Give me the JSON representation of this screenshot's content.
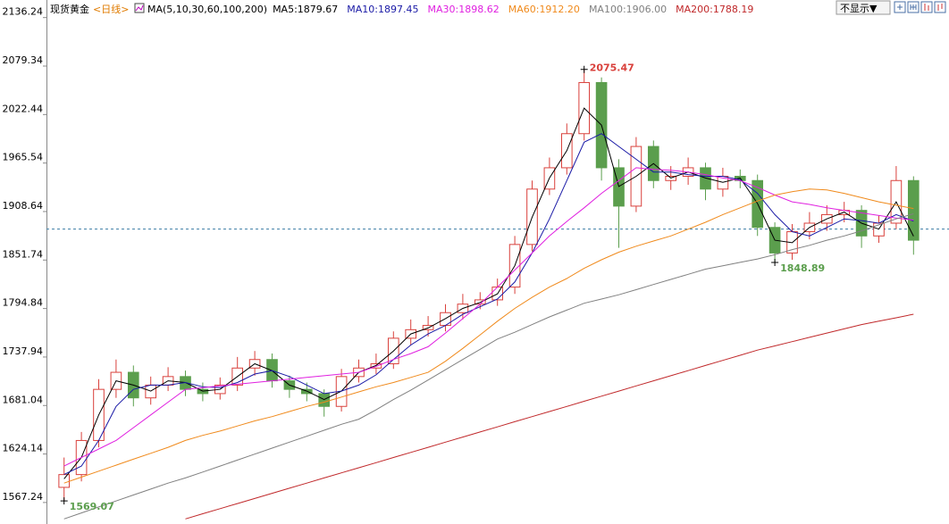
{
  "chart_data": {
    "type": "candlestick",
    "title": "现货黄金",
    "period": "<日线>",
    "ma_title": "MA(5,10,30,60,100,200)",
    "toolbar_button": "不显示▼",
    "ylim": [
      1542,
      2138
    ],
    "yticks": [
      2136.24,
      2079.34,
      2022.44,
      1965.54,
      1908.64,
      1851.74,
      1794.84,
      1737.94,
      1681.04,
      1624.14,
      1567.24
    ],
    "hline": 1888,
    "up_color": "#d9413c",
    "down_color": "#5b9e4d",
    "open": [
      1585,
      1600,
      1640,
      1700,
      1720,
      1690,
      1705,
      1715,
      1700,
      1695,
      1705,
      1725,
      1735,
      1710,
      1700,
      1695,
      1680,
      1715,
      1725,
      1730,
      1760,
      1770,
      1775,
      1790,
      1800,
      1805,
      1820,
      1870,
      1935,
      1960,
      2000,
      2060,
      1960,
      1915,
      1985,
      1945,
      1950,
      1960,
      1935,
      1950,
      1945,
      1890,
      1860,
      1885,
      1895,
      1905,
      1910,
      1880,
      1895,
      1945
    ],
    "high": [
      1620,
      1650,
      1712,
      1735,
      1728,
      1715,
      1726,
      1722,
      1708,
      1714,
      1738,
      1745,
      1742,
      1716,
      1708,
      1700,
      1724,
      1735,
      1742,
      1768,
      1782,
      1786,
      1800,
      1812,
      1814,
      1830,
      1880,
      1945,
      1972,
      2012,
      2075.47,
      2066,
      1970,
      1996,
      1992,
      1962,
      1972,
      1966,
      1960,
      1958,
      1952,
      1896,
      1894,
      1908,
      1916,
      1920,
      1916,
      1904,
      1962,
      1950
    ],
    "low": [
      1569.07,
      1592,
      1632,
      1690,
      1680,
      1682,
      1698,
      1692,
      1686,
      1688,
      1698,
      1716,
      1702,
      1690,
      1686,
      1668,
      1674,
      1708,
      1718,
      1724,
      1752,
      1762,
      1768,
      1782,
      1794,
      1798,
      1812,
      1862,
      1928,
      1952,
      1992,
      1945,
      1866,
      1908,
      1936,
      1934,
      1940,
      1922,
      1926,
      1936,
      1880,
      1848.89,
      1852,
      1876,
      1886,
      1896,
      1866,
      1872,
      1888,
      1858
    ],
    "close": [
      1600,
      1640,
      1700,
      1720,
      1690,
      1705,
      1715,
      1700,
      1695,
      1705,
      1725,
      1735,
      1710,
      1700,
      1695,
      1680,
      1715,
      1725,
      1730,
      1760,
      1770,
      1775,
      1790,
      1800,
      1805,
      1820,
      1870,
      1935,
      1960,
      2000,
      2060,
      1960,
      1915,
      1985,
      1945,
      1950,
      1960,
      1935,
      1950,
      1945,
      1890,
      1860,
      1885,
      1895,
      1905,
      1910,
      1880,
      1895,
      1945,
      1875
    ],
    "annotations": [
      {
        "index": 30,
        "field": "high",
        "color": "#d9413c"
      },
      {
        "index": 41,
        "field": "low",
        "color": "#5b9e4d"
      },
      {
        "index": 0,
        "field": "low",
        "color": "#5b9e4d"
      }
    ],
    "series": [
      {
        "name": "MA5:1879.67",
        "color": "#000000",
        "values": [
          1595,
          1620,
          1670,
          1710,
          1705,
          1698,
          1710,
          1708,
          1698,
          1700,
          1715,
          1730,
          1722,
          1705,
          1698,
          1688,
          1698,
          1720,
          1728,
          1745,
          1765,
          1772,
          1783,
          1795,
          1802,
          1812,
          1845,
          1902,
          1948,
          1980,
          2030,
          2010,
          1938,
          1950,
          1965,
          1948,
          1955,
          1948,
          1943,
          1948,
          1918,
          1875,
          1872,
          1890,
          1900,
          1908,
          1895,
          1888,
          1920,
          1879.67
        ]
      },
      {
        "name": "MA10:1897.45",
        "color": "#1a1aa6",
        "values": [
          1600,
          1610,
          1640,
          1680,
          1700,
          1705,
          1705,
          1708,
          1703,
          1702,
          1708,
          1718,
          1722,
          1715,
          1705,
          1695,
          1698,
          1705,
          1717,
          1735,
          1752,
          1765,
          1775,
          1788,
          1797,
          1806,
          1826,
          1860,
          1900,
          1945,
          1990,
          2000,
          1985,
          1970,
          1955,
          1955,
          1952,
          1950,
          1950,
          1946,
          1930,
          1905,
          1885,
          1880,
          1890,
          1900,
          1898,
          1895,
          1905,
          1897.45
        ]
      },
      {
        "name": "MA30:1898.62",
        "color": "#e020e0",
        "values": [
          1610,
          1620,
          1630,
          1640,
          1655,
          1670,
          1685,
          1700,
          1702,
          1704,
          1706,
          1708,
          1710,
          1712,
          1714,
          1716,
          1718,
          1720,
          1727,
          1735,
          1742,
          1750,
          1766,
          1783,
          1800,
          1820,
          1840,
          1860,
          1880,
          1897,
          1913,
          1930,
          1945,
          1960,
          1958,
          1957,
          1955,
          1952,
          1948,
          1945,
          1937,
          1928,
          1920,
          1917,
          1913,
          1910,
          1907,
          1904,
          1901,
          1898.62
        ]
      },
      {
        "name": "MA60:1912.20",
        "color": "#f08a1c",
        "values": [
          1590,
          1597,
          1604,
          1611,
          1618,
          1625,
          1632,
          1640,
          1646,
          1651,
          1657,
          1663,
          1668,
          1674,
          1680,
          1685,
          1691,
          1697,
          1703,
          1708,
          1714,
          1720,
          1733,
          1748,
          1764,
          1780,
          1795,
          1808,
          1820,
          1830,
          1842,
          1852,
          1861,
          1868,
          1874,
          1880,
          1888,
          1896,
          1905,
          1913,
          1921,
          1928,
          1932,
          1935,
          1934,
          1930,
          1925,
          1920,
          1916,
          1912.2
        ]
      },
      {
        "name": "MA100:1906.00",
        "color": "#808080",
        "values": [
          1548,
          1555,
          1562,
          1569,
          1576,
          1583,
          1590,
          1596,
          1603,
          1610,
          1617,
          1624,
          1631,
          1638,
          1645,
          1652,
          1659,
          1665,
          1676,
          1688,
          1699,
          1711,
          1723,
          1735,
          1747,
          1759,
          1767,
          1776,
          1785,
          1793,
          1801,
          1806,
          1811,
          1817,
          1823,
          1829,
          1835,
          1841,
          1845,
          1849,
          1853,
          1858,
          1864,
          1869,
          1875,
          1880,
          1886,
          1893,
          1900,
          1906.0
        ]
      },
      {
        "name": "MA200:1788.19",
        "color": "#c0282a",
        "values": [
          null,
          null,
          null,
          null,
          null,
          null,
          null,
          1548,
          1554,
          1560,
          1566,
          1572,
          1578,
          1584,
          1590,
          1596,
          1602,
          1608,
          1614,
          1620,
          1626,
          1632,
          1638,
          1644,
          1650,
          1656,
          1662,
          1668,
          1674,
          1680,
          1686,
          1692,
          1698,
          1704,
          1710,
          1716,
          1722,
          1728,
          1734,
          1740,
          1746,
          1751,
          1756,
          1761,
          1766,
          1771,
          1776,
          1780,
          1784,
          1788.19
        ]
      }
    ]
  }
}
